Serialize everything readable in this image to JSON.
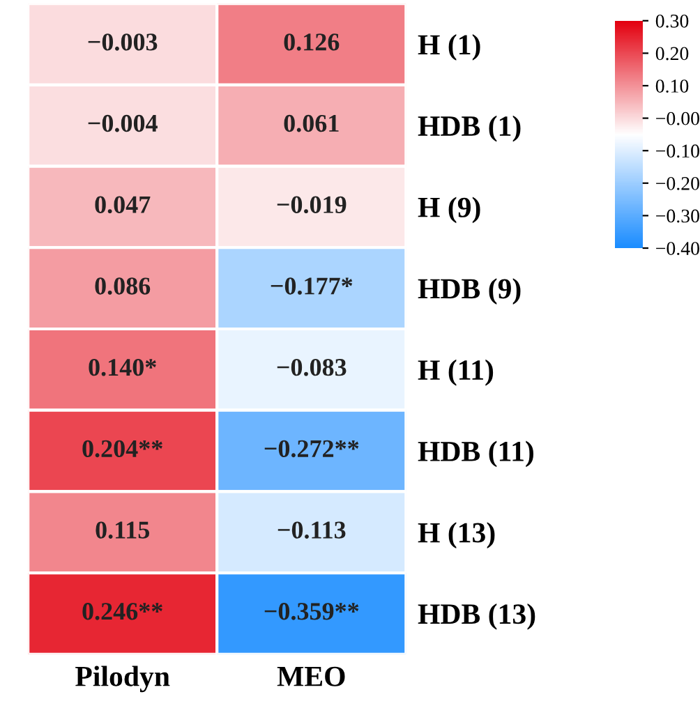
{
  "chart_data": {
    "type": "heatmap",
    "categories": [
      "Pilodyn",
      "MEO"
    ],
    "y_categories": [
      "H (1)",
      "HDB (1)",
      "H (9)",
      "HDB (9)",
      "H (11)",
      "HDB (11)",
      "H (13)",
      "HDB (13)"
    ],
    "cells": [
      [
        -0.003,
        0.126
      ],
      [
        -0.004,
        0.061
      ],
      [
        0.047,
        -0.019
      ],
      [
        0.086,
        -0.177
      ],
      [
        0.14,
        -0.083
      ],
      [
        0.204,
        -0.272
      ],
      [
        0.115,
        -0.113
      ],
      [
        0.246,
        -0.359
      ]
    ],
    "cell_labels": [
      [
        "−0.003",
        "0.126"
      ],
      [
        "−0.004",
        "0.061"
      ],
      [
        "0.047",
        "−0.019"
      ],
      [
        "0.086",
        "−0.177*"
      ],
      [
        "0.140*",
        "−0.083"
      ],
      [
        "0.204**",
        "−0.272**"
      ],
      [
        "0.115",
        "−0.113"
      ],
      [
        "0.246**",
        "−0.359**"
      ]
    ],
    "clim": [
      -0.4,
      0.3
    ],
    "cticks": [
      {
        "value": 0.3,
        "label": "0.30"
      },
      {
        "value": 0.2,
        "label": "0.20"
      },
      {
        "value": 0.1,
        "label": "0.10"
      },
      {
        "value": 0,
        "label": "−0.00"
      },
      {
        "value": -0.1,
        "label": "−0.10"
      },
      {
        "value": -0.2,
        "label": "−0.20"
      },
      {
        "value": -0.3,
        "label": "−0.30"
      },
      {
        "value": -0.4,
        "label": "−0.40"
      }
    ]
  }
}
